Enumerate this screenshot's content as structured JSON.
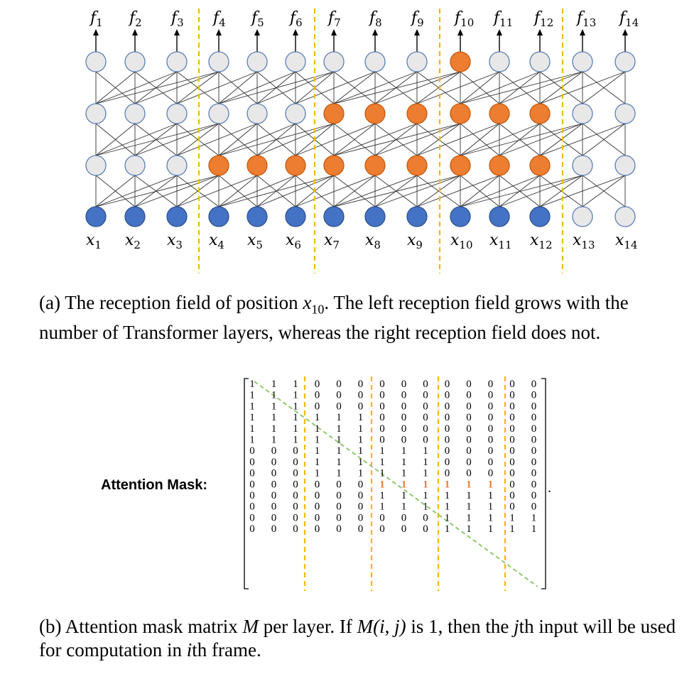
{
  "network": {
    "output_labels": [
      "f",
      "f",
      "f",
      "f",
      "f",
      "f",
      "f",
      "f",
      "f",
      "f",
      "f",
      "f",
      "f",
      "f"
    ],
    "output_subscripts": [
      "1",
      "2",
      "3",
      "4",
      "5",
      "6",
      "7",
      "8",
      "9",
      "10",
      "11",
      "12",
      "13",
      "14"
    ],
    "input_labels": [
      "x",
      "x",
      "x",
      "x",
      "x",
      "x",
      "x",
      "x",
      "x",
      "x",
      "x",
      "x",
      "x",
      "x"
    ],
    "input_subscripts": [
      "1",
      "2",
      "3",
      "4",
      "5",
      "6",
      "7",
      "8",
      "9",
      "10",
      "11",
      "12",
      "13",
      "14"
    ],
    "layers": [
      [
        "blue",
        "blue",
        "blue",
        "blue",
        "blue",
        "blue",
        "blue",
        "blue",
        "blue",
        "blue",
        "blue",
        "blue",
        "gray",
        "gray"
      ],
      [
        "gray",
        "gray",
        "gray",
        "orange",
        "orange",
        "orange",
        "orange",
        "orange",
        "orange",
        "orange",
        "orange",
        "orange",
        "gray",
        "gray"
      ],
      [
        "gray",
        "gray",
        "gray",
        "gray",
        "gray",
        "gray",
        "orange",
        "orange",
        "orange",
        "orange",
        "orange",
        "orange",
        "gray",
        "gray"
      ],
      [
        "gray",
        "gray",
        "gray",
        "gray",
        "gray",
        "gray",
        "gray",
        "gray",
        "gray",
        "orange",
        "gray",
        "gray",
        "gray",
        "gray"
      ]
    ],
    "colors": {
      "blue": "#4472c4",
      "orange": "#ed7d31",
      "gray": "#e8e8e8",
      "divider": "#f5b80a",
      "edge": "#333333",
      "node_border": "#5b7eb5"
    }
  },
  "caption_a": {
    "prefix": "(a) The reception field of position ",
    "var": "x",
    "sub": "10",
    "suffix": ".  The left reception field grows with the number of Transformer layers, whereas the right reception field does not."
  },
  "mask": {
    "label": "Attention Mask:",
    "rows": [
      [
        1,
        1,
        1,
        0,
        0,
        0,
        0,
        0,
        0,
        0,
        0,
        0,
        0,
        0
      ],
      [
        1,
        1,
        1,
        0,
        0,
        0,
        0,
        0,
        0,
        0,
        0,
        0,
        0,
        0
      ],
      [
        1,
        1,
        1,
        0,
        0,
        0,
        0,
        0,
        0,
        0,
        0,
        0,
        0,
        0
      ],
      [
        1,
        1,
        1,
        1,
        1,
        1,
        0,
        0,
        0,
        0,
        0,
        0,
        0,
        0
      ],
      [
        1,
        1,
        1,
        1,
        1,
        1,
        0,
        0,
        0,
        0,
        0,
        0,
        0,
        0
      ],
      [
        1,
        1,
        1,
        1,
        1,
        1,
        0,
        0,
        0,
        0,
        0,
        0,
        0,
        0
      ],
      [
        0,
        0,
        0,
        1,
        1,
        1,
        1,
        1,
        1,
        0,
        0,
        0,
        0,
        0
      ],
      [
        0,
        0,
        0,
        1,
        1,
        1,
        1,
        1,
        1,
        0,
        0,
        0,
        0,
        0
      ],
      [
        0,
        0,
        0,
        1,
        1,
        1,
        1,
        1,
        1,
        0,
        0,
        0,
        0,
        0
      ],
      [
        0,
        0,
        0,
        0,
        0,
        0,
        1,
        1,
        1,
        1,
        1,
        1,
        0,
        0
      ],
      [
        0,
        0,
        0,
        0,
        0,
        0,
        1,
        1,
        1,
        1,
        1,
        1,
        0,
        0
      ],
      [
        0,
        0,
        0,
        0,
        0,
        0,
        1,
        1,
        1,
        1,
        1,
        1,
        0,
        0
      ],
      [
        0,
        0,
        0,
        0,
        0,
        0,
        0,
        0,
        0,
        1,
        1,
        1,
        1,
        1
      ],
      [
        0,
        0,
        0,
        0,
        0,
        0,
        0,
        0,
        0,
        1,
        1,
        1,
        1,
        1
      ]
    ],
    "highlight_row": 9,
    "highlight_color": "#ed7d31",
    "diagonal_color": "#8fc96e",
    "trailing": "."
  },
  "caption_b": {
    "p1": "(b) Attention mask matrix ",
    "M": "M",
    "p2": " per layer.  If ",
    "Mij": "M(i, j)",
    "p3": " is 1, then the ",
    "j": "j",
    "p4": "th input will be used for computation in ",
    "i": "i",
    "p5": "th frame."
  }
}
